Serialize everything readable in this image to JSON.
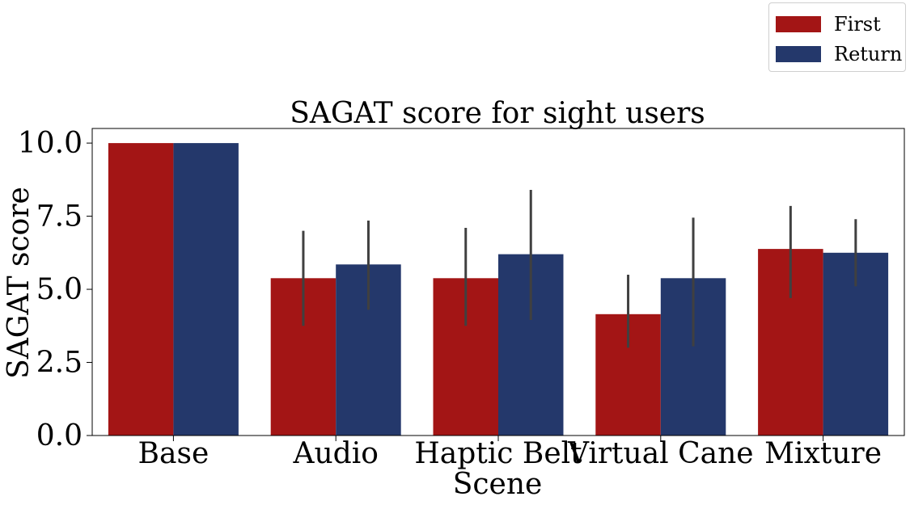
{
  "chart_data": {
    "type": "bar",
    "title": "SAGAT score for sight users",
    "xlabel": "Scene",
    "ylabel": "SAGAT score",
    "categories": [
      "Base",
      "Audio",
      "Haptic Belt",
      "Virtual Cane",
      "Mixture"
    ],
    "ylim": [
      0,
      10.5
    ],
    "yticks": [
      "0.0",
      "2.5",
      "5.0",
      "7.5",
      "10.0"
    ],
    "grid": false,
    "legend_position": "top-right",
    "series": [
      {
        "name": "First",
        "color": "#a31515",
        "values": [
          10.0,
          5.38,
          5.38,
          4.15,
          6.38
        ],
        "error_low": [
          10.0,
          3.75,
          3.75,
          3.0,
          4.7
        ],
        "error_high": [
          10.0,
          7.0,
          7.1,
          5.5,
          7.85
        ]
      },
      {
        "name": "Return",
        "color": "#24386b",
        "values": [
          10.0,
          5.85,
          6.2,
          5.38,
          6.25
        ],
        "error_low": [
          10.0,
          4.3,
          3.95,
          3.05,
          5.1
        ],
        "error_high": [
          10.0,
          7.35,
          8.4,
          7.45,
          7.4
        ]
      }
    ],
    "errorbar_color": "#404040"
  }
}
